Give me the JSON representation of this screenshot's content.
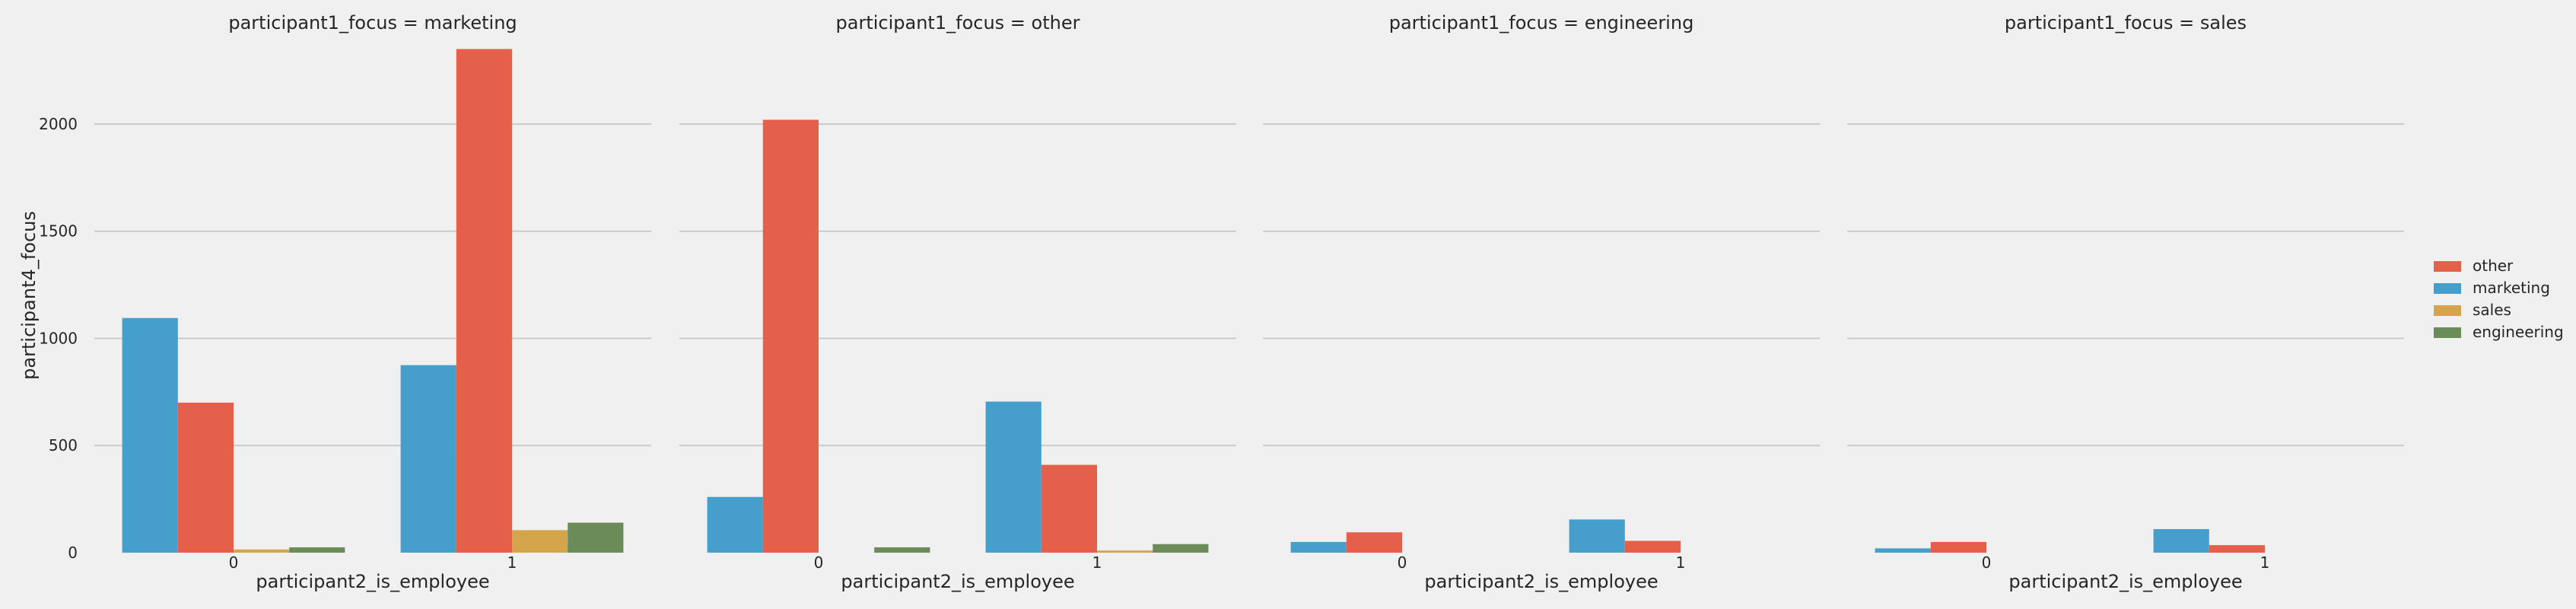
{
  "chart_data": {
    "type": "bar",
    "ylabel": "participant4_focus",
    "xlabel": "participant2_is_employee",
    "categories": [
      "0",
      "1"
    ],
    "ylim": [
      0,
      2380
    ],
    "yticks": [
      0,
      500,
      1000,
      1500,
      2000
    ],
    "grid": "horizontal",
    "legend_position": "right",
    "hue_order": [
      "marketing",
      "other",
      "sales",
      "engineering"
    ],
    "legend": [
      {
        "label": "other",
        "color": "#e5604a"
      },
      {
        "label": "marketing",
        "color": "#469ecb"
      },
      {
        "label": "sales",
        "color": "#d4a54a"
      },
      {
        "label": "engineering",
        "color": "#6b8b59"
      }
    ],
    "facets": [
      {
        "title": "participant1_focus = marketing",
        "series": [
          {
            "name": "marketing",
            "values": [
              1095,
              875
            ]
          },
          {
            "name": "other",
            "values": [
              700,
              2350
            ]
          },
          {
            "name": "sales",
            "values": [
              15,
              105
            ]
          },
          {
            "name": "engineering",
            "values": [
              25,
              140
            ]
          }
        ]
      },
      {
        "title": "participant1_focus = other",
        "series": [
          {
            "name": "marketing",
            "values": [
              260,
              705
            ]
          },
          {
            "name": "other",
            "values": [
              2020,
              410
            ]
          },
          {
            "name": "sales",
            "values": [
              0,
              10
            ]
          },
          {
            "name": "engineering",
            "values": [
              25,
              40
            ]
          }
        ]
      },
      {
        "title": "participant1_focus = engineering",
        "series": [
          {
            "name": "marketing",
            "values": [
              50,
              155
            ]
          },
          {
            "name": "other",
            "values": [
              95,
              55
            ]
          },
          {
            "name": "sales",
            "values": [
              0,
              0
            ]
          },
          {
            "name": "engineering",
            "values": [
              0,
              0
            ]
          }
        ]
      },
      {
        "title": "participant1_focus = sales",
        "series": [
          {
            "name": "marketing",
            "values": [
              20,
              110
            ]
          },
          {
            "name": "other",
            "values": [
              50,
              35
            ]
          },
          {
            "name": "sales",
            "values": [
              0,
              0
            ]
          },
          {
            "name": "engineering",
            "values": [
              0,
              0
            ]
          }
        ]
      }
    ]
  }
}
